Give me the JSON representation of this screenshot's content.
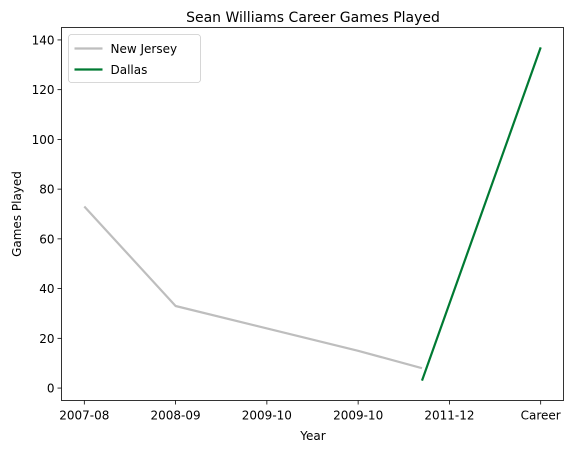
{
  "chart_data": {
    "type": "line",
    "title": "Sean Williams  Career Games Played",
    "xlabel": "Year",
    "ylabel": "Games Played",
    "ylim": [
      -5,
      145
    ],
    "yticks": [
      0,
      20,
      40,
      60,
      80,
      100,
      120,
      140
    ],
    "xticks": [
      {
        "label": "2007-08",
        "pos": 0
      },
      {
        "label": "2008-09",
        "pos": 1
      },
      {
        "label": "2009-10",
        "pos": 2
      },
      {
        "label": "2009-10",
        "pos": 3
      },
      {
        "label": "2011-12",
        "pos": 4
      },
      {
        "label": "Career",
        "pos": 5
      }
    ],
    "xlim": [
      -0.25,
      5.25
    ],
    "grid": false,
    "legend_position": "upper-left",
    "series": [
      {
        "name": "New Jersey",
        "color": "#bebebe",
        "points": [
          {
            "x": 0,
            "y": 73
          },
          {
            "x": 1,
            "y": 33
          },
          {
            "x": 3,
            "y": 15
          },
          {
            "x": 3.7,
            "y": 8
          }
        ]
      },
      {
        "name": "Dallas",
        "color": "#007a33",
        "points": [
          {
            "x": 3.7,
            "y": 3
          },
          {
            "x": 5,
            "y": 137
          }
        ]
      }
    ]
  }
}
